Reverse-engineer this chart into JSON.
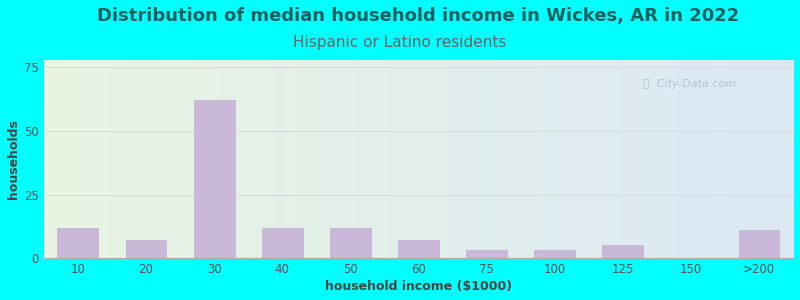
{
  "title": "Distribution of median household income in Wickes, AR in 2022",
  "subtitle": "Hispanic or Latino residents",
  "xlabel": "household income ($1000)",
  "ylabel": "households",
  "background_color": "#00FFFF",
  "bar_color": "#c9b8d8",
  "bar_edge_color": "#c0afd0",
  "categories": [
    "10",
    "20",
    "30",
    "40",
    "50",
    "60",
    "75",
    "100",
    "125",
    "150",
    ">200"
  ],
  "values": [
    12,
    7,
    62,
    12,
    12,
    7,
    3,
    3,
    5,
    0,
    11
  ],
  "ylim": [
    0,
    78
  ],
  "yticks": [
    0,
    25,
    50,
    75
  ],
  "title_fontsize": 13,
  "subtitle_fontsize": 11,
  "axis_label_fontsize": 9,
  "tick_fontsize": 8.5,
  "title_color": "#1a6060",
  "subtitle_color": "#666666",
  "axis_label_color": "#444444",
  "tick_color": "#555555",
  "grid_color": "#dddddd",
  "watermark_text": "ⓘ  City-Data.com",
  "watermark_color": "#b0b8c8",
  "plot_bg_left": "#e8f5e2",
  "plot_bg_right": "#dce8f5"
}
